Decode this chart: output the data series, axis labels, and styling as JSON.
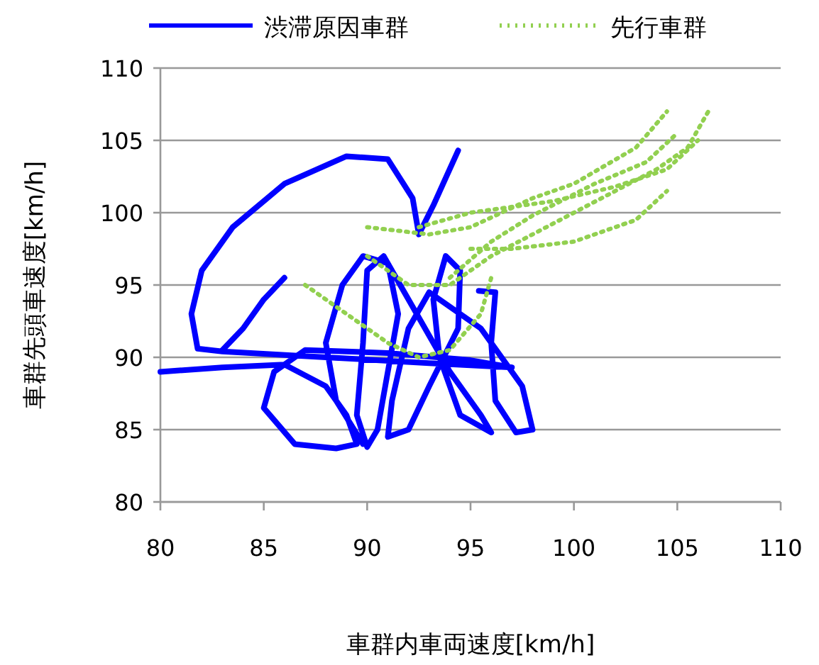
{
  "chart_data": {
    "type": "line",
    "xlabel": "車群内車両速度[km/h]",
    "ylabel": "車群先頭車速度[km/h]",
    "xlim": [
      80,
      110
    ],
    "xticks": [
      80,
      85,
      90,
      95,
      100,
      105,
      110
    ],
    "ylim": [
      80,
      110
    ],
    "yticks": [
      80,
      85,
      90,
      95,
      100,
      105,
      110
    ],
    "grid": "y",
    "legend": "top",
    "marker": "none",
    "series": [
      {
        "name": "渋滞原因車群",
        "color": "#0000ff",
        "line_style": "solid",
        "x": [
          80,
          83,
          86,
          88,
          89,
          89.5,
          88.5,
          86.5,
          85,
          85.5,
          87,
          91,
          95,
          97,
          93,
          88,
          83,
          81.8,
          81.5,
          82,
          83.5,
          86,
          89,
          91,
          92.2,
          92.5,
          93.2,
          94.4,
          null,
          86,
          85,
          84,
          83,
          null,
          89.8,
          88.5,
          88,
          88.8,
          89.8,
          91,
          91.5,
          91,
          90.5,
          90,
          89.5,
          89.8,
          90,
          90.8,
          92,
          94,
          95.5,
          96,
          94.5,
          93.5,
          93.2,
          93.8,
          94.5,
          94.4,
          93,
          92,
          91,
          91.2,
          92,
          93,
          95.5,
          97.5,
          98,
          97.2,
          96.2,
          96,
          96.2,
          95.4
        ],
        "values": [
          89,
          89.3,
          89.5,
          88,
          86,
          84,
          83.7,
          84,
          86.5,
          89,
          90.5,
          90.3,
          89.8,
          89.3,
          89.6,
          90,
          90.4,
          90.6,
          93,
          96,
          99,
          102,
          103.9,
          103.7,
          101,
          98.5,
          100.5,
          104.3,
          null,
          95.5,
          94,
          92,
          90.5,
          null,
          84,
          87,
          91,
          95,
          97,
          96.5,
          93,
          89,
          85,
          83.8,
          86,
          91,
          96,
          97,
          94,
          89,
          86,
          84.8,
          86,
          90,
          94,
          97,
          96,
          92,
          88,
          85,
          84.5,
          87,
          92,
          94.5,
          92,
          88,
          85,
          84.8,
          87,
          91,
          94.5,
          94.6
        ]
      },
      {
        "name": "先行車群",
        "color": "#92d050",
        "line_style": "dotted",
        "x": [
          87,
          89,
          91,
          92.5,
          94,
          95.5,
          96,
          null,
          90,
          92,
          94,
          96,
          98,
          100,
          102,
          104,
          105.5,
          106.5,
          null,
          90,
          93,
          95,
          98,
          100,
          103,
          104.5,
          null,
          92.5,
          95,
          99,
          102,
          104.5,
          106,
          null,
          94,
          96,
          98,
          101,
          103.5,
          105,
          null,
          95,
          97,
          100,
          103,
          104.5
        ],
        "values": [
          95,
          93,
          91,
          90,
          90.5,
          93,
          95.5,
          null,
          97,
          95,
          95,
          97,
          98.5,
          100,
          101.5,
          103,
          104.5,
          107,
          null,
          99,
          98.5,
          99,
          101,
          102,
          104.5,
          107,
          null,
          99,
          100,
          100.8,
          101.8,
          103,
          105,
          null,
          95.5,
          98,
          99.8,
          102,
          103.5,
          105.5,
          null,
          97.5,
          97.5,
          98,
          99.5,
          101.5
        ]
      }
    ]
  }
}
